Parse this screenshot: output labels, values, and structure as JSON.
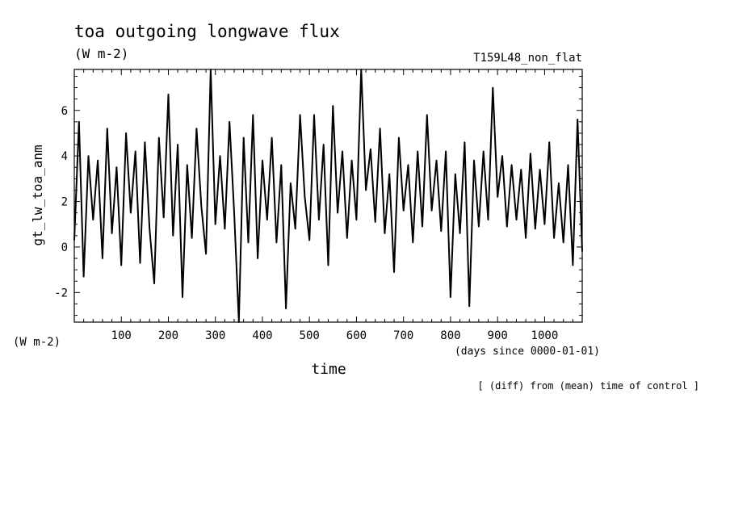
{
  "chart_data": {
    "type": "line",
    "title": "toa outgoing longwave flux",
    "subtitle": "(W m-2)",
    "experiment": "T159L48_non_flat",
    "ylabel": "gt_lw_toa_anm",
    "yunit": "(W m-2)",
    "xlabel": "time",
    "xunit": "(days since 0000-01-01)",
    "note": "[ (diff) from (mean) time of control ]",
    "xlim": [
      0,
      1080
    ],
    "ylim": [
      -3.3,
      7.8
    ],
    "xticks": [
      100,
      200,
      300,
      400,
      500,
      600,
      700,
      800,
      900,
      1000
    ],
    "xtick_labels": [
      "100",
      "200",
      "300",
      "400",
      "500",
      "600",
      "700",
      "800",
      "900",
      "1000"
    ],
    "yticks": [
      -2,
      0,
      2,
      4,
      6
    ],
    "ytick_labels": [
      "-2",
      "0",
      "2",
      "4",
      "6"
    ],
    "series": [
      {
        "x": [
          0,
          10,
          20,
          30,
          40,
          50,
          60,
          70,
          80,
          90,
          100,
          110,
          120,
          130,
          140,
          150,
          160,
          170,
          180,
          190,
          200,
          210,
          220,
          230,
          240,
          250,
          260,
          270,
          280,
          290,
          300,
          310,
          320,
          330,
          340,
          350,
          360,
          370,
          380,
          390,
          400,
          410,
          420,
          430,
          440,
          450,
          460,
          470,
          480,
          490,
          500,
          510,
          520,
          530,
          540,
          550,
          560,
          570,
          580,
          590,
          600,
          610,
          620,
          630,
          640,
          650,
          660,
          670,
          680,
          690,
          700,
          710,
          720,
          730,
          740,
          750,
          760,
          770,
          780,
          790,
          800,
          810,
          820,
          830,
          840,
          850,
          860,
          870,
          880,
          890,
          900,
          910,
          920,
          930,
          940,
          950,
          960,
          970,
          980,
          990,
          1000,
          1010,
          1020,
          1030,
          1040,
          1050,
          1060,
          1070,
          1080
        ],
        "y": [
          0.3,
          5.5,
          -1.3,
          4.0,
          1.2,
          3.8,
          -0.5,
          5.2,
          0.6,
          3.5,
          -0.8,
          5.0,
          1.5,
          4.2,
          -0.7,
          4.6,
          0.8,
          -1.6,
          4.8,
          1.3,
          6.7,
          0.5,
          4.5,
          -2.2,
          3.6,
          0.4,
          5.2,
          1.8,
          -0.3,
          7.8,
          1.0,
          4.0,
          0.8,
          5.5,
          1.5,
          -3.3,
          4.8,
          0.2,
          5.8,
          -0.5,
          3.8,
          1.2,
          4.8,
          0.2,
          3.6,
          -2.7,
          2.8,
          0.8,
          5.8,
          2.2,
          0.3,
          5.8,
          1.2,
          4.5,
          -0.8,
          6.2,
          1.5,
          4.2,
          0.4,
          3.8,
          1.2,
          7.8,
          2.5,
          4.3,
          1.1,
          5.2,
          0.6,
          3.2,
          -1.1,
          4.8,
          1.6,
          3.6,
          0.2,
          4.2,
          0.9,
          5.8,
          1.6,
          3.8,
          0.7,
          4.2,
          -2.2,
          3.2,
          0.6,
          4.6,
          -2.6,
          3.8,
          0.9,
          4.2,
          1.2,
          7.0,
          2.2,
          4.0,
          0.9,
          3.6,
          1.2,
          3.4,
          0.4,
          4.1,
          0.8,
          3.4,
          1.0,
          4.6,
          0.4,
          2.8,
          0.2,
          3.6,
          -0.8,
          5.6,
          -0.2
        ]
      }
    ],
    "line_color": "#000000"
  }
}
